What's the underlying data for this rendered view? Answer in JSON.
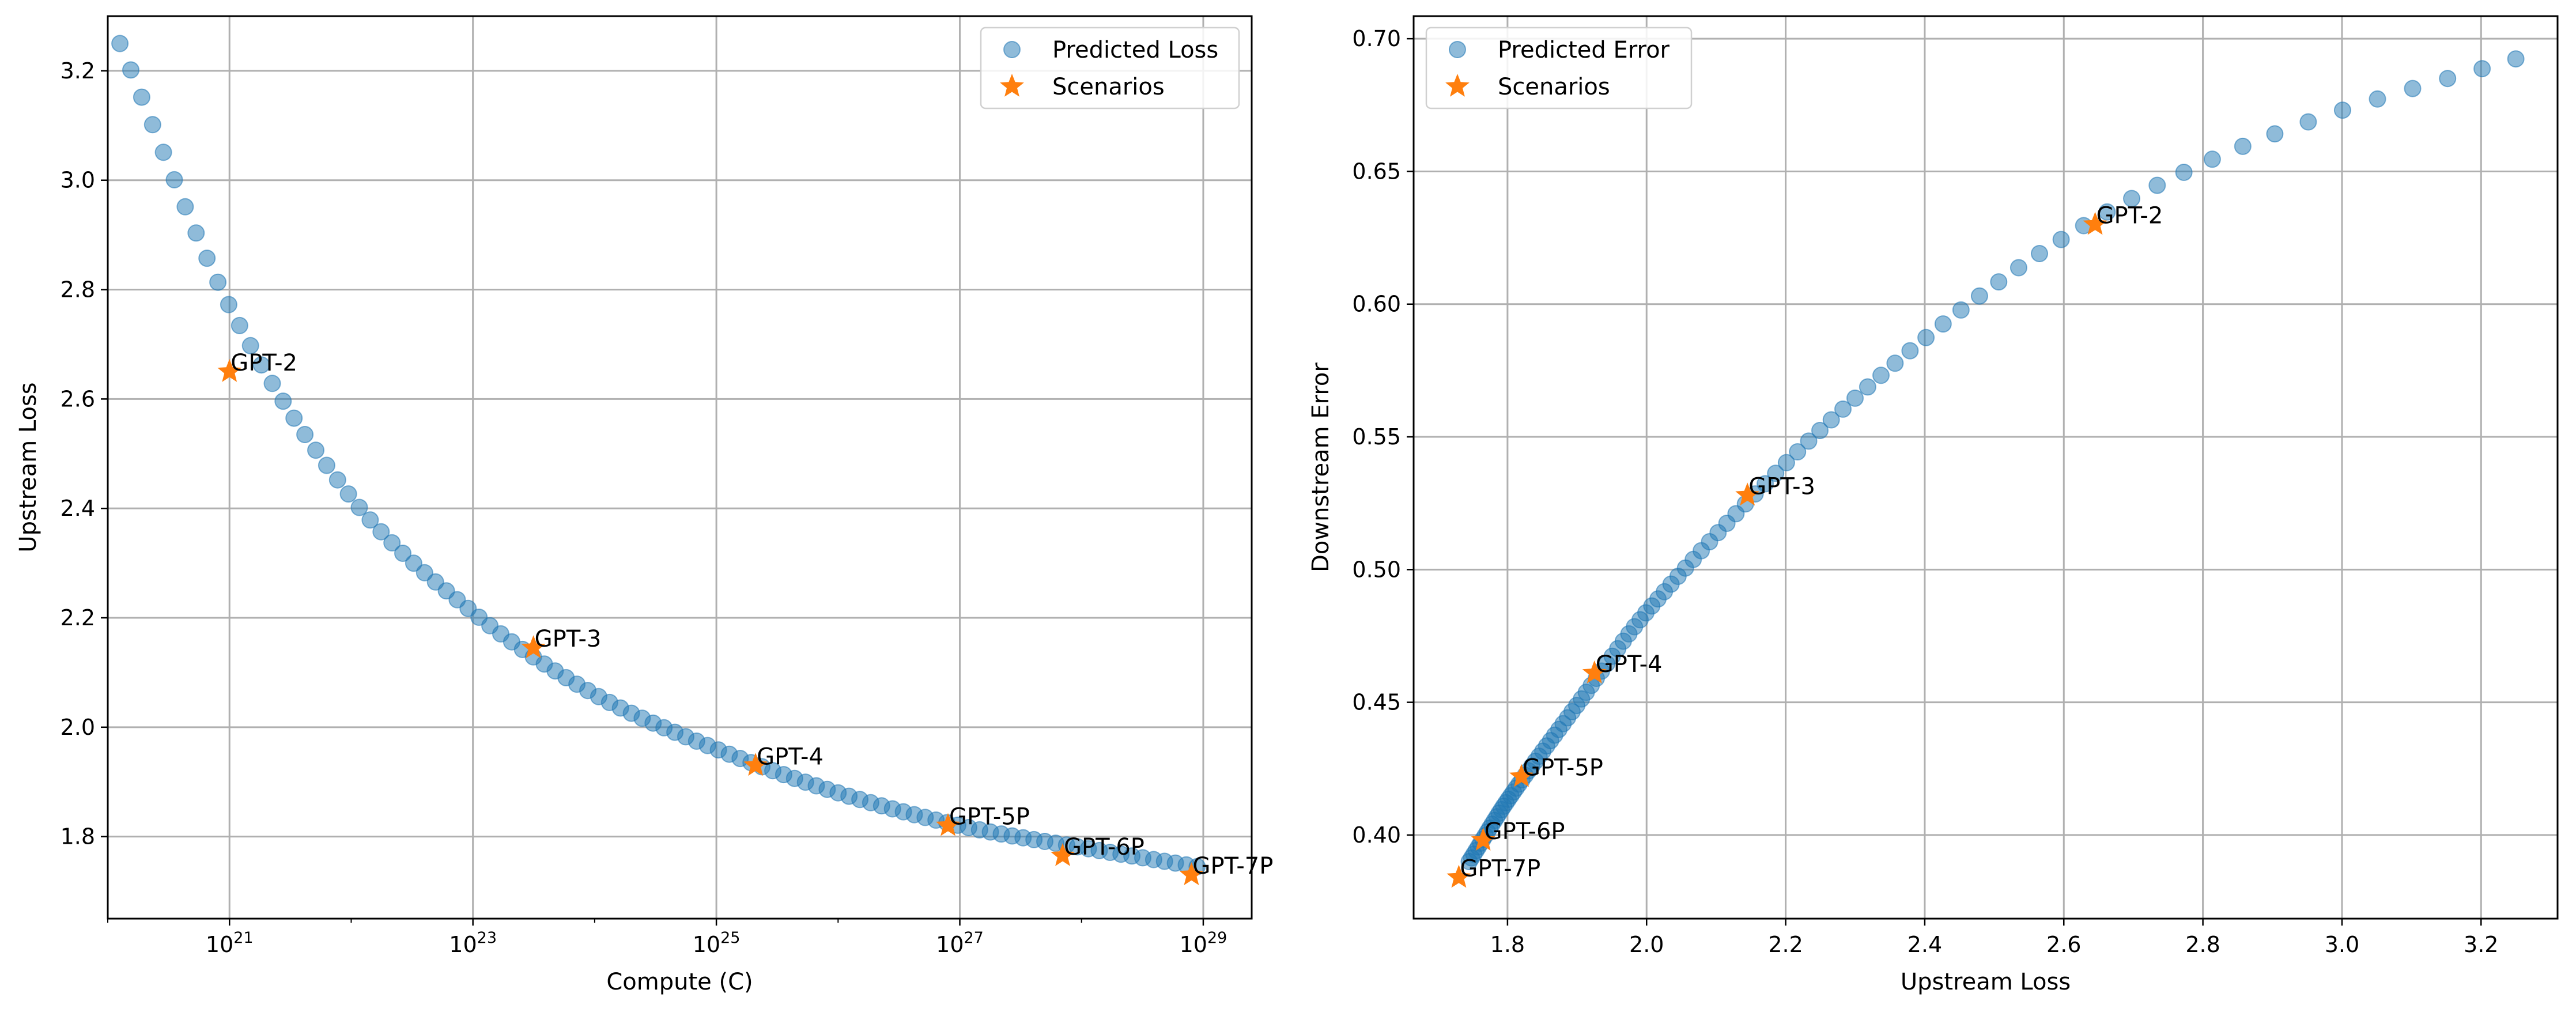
{
  "chart_data": [
    {
      "type": "scatter",
      "xlabel": "Compute (C)",
      "ylabel": "Upstream Loss",
      "xscale": "log",
      "xlim": [
        1e+20,
        2.5e+29
      ],
      "ylim": [
        1.65,
        3.3
      ],
      "xtick_values": [
        1e+21,
        1e+23,
        1e+25,
        1e+27,
        1e+29
      ],
      "xticks": [
        {
          "base": "10",
          "exp": "21"
        },
        {
          "base": "10",
          "exp": "23"
        },
        {
          "base": "10",
          "exp": "25"
        },
        {
          "base": "10",
          "exp": "27"
        },
        {
          "base": "10",
          "exp": "29"
        }
      ],
      "yticks": [
        "1.8",
        "2.0",
        "2.2",
        "2.4",
        "2.6",
        "2.8",
        "3.0",
        "3.2"
      ],
      "grid": true,
      "legend_position": "upper right",
      "legend": [
        "Predicted Loss",
        "Scenarios"
      ],
      "series": [
        {
          "name": "Predicted Loss",
          "marker": "circle",
          "color": "#1f77b4",
          "x_log10_range": [
            20.1,
            28.95
          ],
          "count": 100,
          "points_log10x_y": [
            [
              20.1,
              3.25
            ],
            [
              21.0,
              2.77
            ],
            [
              22.0,
              2.42
            ],
            [
              23.0,
              2.21
            ],
            [
              24.0,
              2.06
            ],
            [
              25.0,
              1.96
            ],
            [
              26.0,
              1.88
            ],
            [
              27.0,
              1.82
            ],
            [
              28.0,
              1.78
            ],
            [
              28.95,
              1.745
            ]
          ]
        },
        {
          "name": "Scenarios",
          "marker": "star",
          "color": "#ff7f0e",
          "points": [
            {
              "label": "GPT-2",
              "x": 1e+21,
              "y": 2.65
            },
            {
              "label": "GPT-3",
              "x": 3.14e+23,
              "y": 2.145
            },
            {
              "label": "GPT-4",
              "x": 2.1e+25,
              "y": 1.93
            },
            {
              "label": "GPT-5P",
              "x": 8e+26,
              "y": 1.82
            },
            {
              "label": "GPT-6P",
              "x": 7e+27,
              "y": 1.765
            },
            {
              "label": "GPT-7P",
              "x": 8e+28,
              "y": 1.73
            }
          ]
        }
      ]
    },
    {
      "type": "scatter",
      "xlabel": "Upstream Loss",
      "ylabel": "Downstream Error",
      "xlim": [
        1.665,
        3.31
      ],
      "ylim": [
        0.3685,
        0.7085
      ],
      "xticks": [
        "1.8",
        "2.0",
        "2.2",
        "2.4",
        "2.6",
        "2.8",
        "3.0",
        "3.2"
      ],
      "yticks": [
        "0.40",
        "0.45",
        "0.50",
        "0.55",
        "0.60",
        "0.65",
        "0.70"
      ],
      "grid": true,
      "legend_position": "upper left",
      "legend": [
        "Predicted Error",
        "Scenarios"
      ],
      "series": [
        {
          "name": "Predicted Error",
          "marker": "circle",
          "color": "#1f77b4",
          "count": 100,
          "points": [
            [
              1.745,
              0.39
            ],
            [
              1.8,
              0.413
            ],
            [
              1.9,
              0.449
            ],
            [
              2.0,
              0.484
            ],
            [
              2.2,
              0.54
            ],
            [
              2.4,
              0.587
            ],
            [
              2.6,
              0.625
            ],
            [
              2.8,
              0.653
            ],
            [
              3.0,
              0.673
            ],
            [
              3.245,
              0.692
            ]
          ]
        },
        {
          "name": "Scenarios",
          "marker": "star",
          "color": "#ff7f0e",
          "points": [
            {
              "label": "GPT-2",
              "x": 2.645,
              "y": 0.63
            },
            {
              "label": "GPT-3",
              "x": 2.145,
              "y": 0.528
            },
            {
              "label": "GPT-4",
              "x": 1.925,
              "y": 0.461
            },
            {
              "label": "GPT-5P",
              "x": 1.82,
              "y": 0.422
            },
            {
              "label": "GPT-6P",
              "x": 1.765,
              "y": 0.398
            },
            {
              "label": "GPT-7P",
              "x": 1.73,
              "y": 0.384
            }
          ]
        }
      ]
    }
  ]
}
